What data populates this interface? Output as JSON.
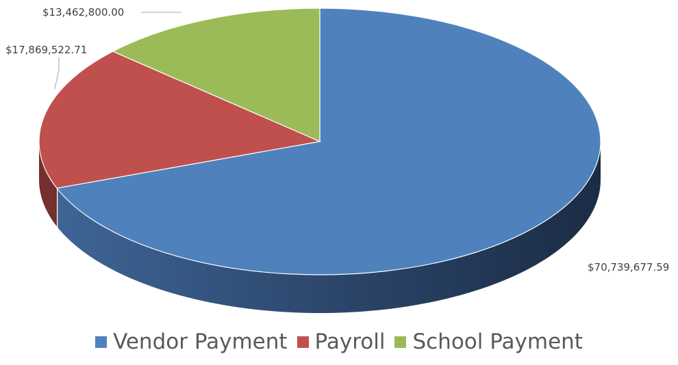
{
  "chart_data": {
    "type": "pie",
    "categories": [
      "Vendor Payment",
      "Payroll",
      "School Payment"
    ],
    "values": [
      70739677.59,
      17869522.71,
      13462800.0
    ],
    "data_labels": [
      "$70,739,677.59",
      "$17,869,522.71",
      "$13,462,800.00"
    ],
    "colors": [
      "#4F81BD",
      "#C0504D",
      "#9BBB59"
    ],
    "style": "3d",
    "legend_position": "bottom"
  }
}
